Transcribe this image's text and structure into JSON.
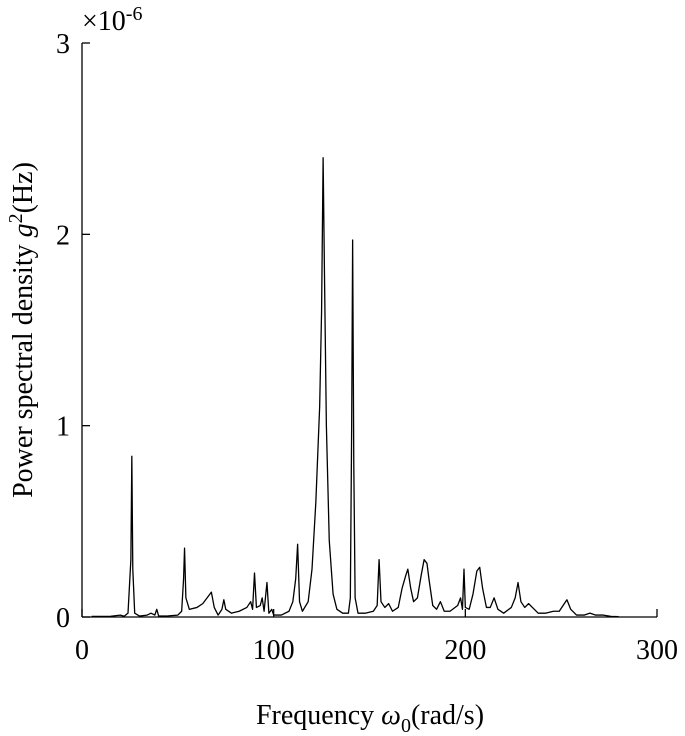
{
  "chart_data": {
    "type": "line",
    "y_scale_label": {
      "base": "×10",
      "exponent": "-6"
    },
    "ylabel": {
      "text": "Power spectral density ",
      "symbol": "g",
      "sup": "2",
      "unit": "(Hz)"
    },
    "xlabel": {
      "text": "Frequency ",
      "symbol": "ω",
      "sub": "0",
      "unit": "(rad/s)"
    },
    "xlim": [
      0,
      300
    ],
    "xticks": [
      0,
      100,
      200,
      300
    ],
    "ylim": [
      0,
      3
    ],
    "yticks": [
      0,
      1,
      2,
      3
    ],
    "grid": false,
    "series": [
      {
        "color": "#000000",
        "x": [
          5,
          15,
          20,
          22,
          24,
          25.5,
          26,
          26.5,
          27.5,
          30,
          34,
          36,
          38,
          39,
          40,
          45,
          50,
          52,
          53,
          53.5,
          54.2,
          56,
          60,
          63,
          66,
          67.5,
          69,
          71,
          73,
          74,
          75,
          78,
          82,
          86,
          88,
          89,
          90,
          91,
          93,
          94,
          95,
          96.5,
          97.5,
          99,
          100,
          104,
          108,
          110,
          111.5,
          112.5,
          113.5,
          115,
          118,
          120,
          122,
          124,
          125,
          125.8,
          126.5,
          127.5,
          129,
          131,
          133,
          136,
          139,
          140,
          140.7,
          141.2,
          141.8,
          142.5,
          144,
          148,
          152,
          154,
          155,
          156,
          158,
          160,
          162,
          165,
          167,
          169,
          170,
          171.5,
          173,
          175,
          177,
          178.5,
          180,
          181,
          183,
          185,
          187,
          189,
          192,
          196,
          197.5,
          198.5,
          199.3,
          200,
          202,
          204,
          206,
          207.5,
          209,
          211,
          213,
          215,
          217,
          220,
          224,
          226,
          227.5,
          229,
          231,
          233,
          235,
          238,
          242,
          246,
          249,
          251,
          253,
          255,
          258,
          262,
          265,
          268,
          272,
          276,
          280
        ],
        "values": [
          0.003,
          0.004,
          0.01,
          0.004,
          0.02,
          0.3,
          0.84,
          0.25,
          0.02,
          0.005,
          0.01,
          0.02,
          0.01,
          0.04,
          0.005,
          0.006,
          0.01,
          0.03,
          0.2,
          0.36,
          0.1,
          0.04,
          0.05,
          0.07,
          0.11,
          0.13,
          0.05,
          0.01,
          0.04,
          0.09,
          0.04,
          0.02,
          0.03,
          0.05,
          0.08,
          0.04,
          0.23,
          0.05,
          0.06,
          0.1,
          0.03,
          0.18,
          0.02,
          0.04,
          0.01,
          0.01,
          0.03,
          0.08,
          0.2,
          0.38,
          0.08,
          0.03,
          0.08,
          0.25,
          0.6,
          1.1,
          1.6,
          2.4,
          1.8,
          1.0,
          0.4,
          0.12,
          0.04,
          0.02,
          0.02,
          0.1,
          1.0,
          1.97,
          0.8,
          0.1,
          0.02,
          0.02,
          0.03,
          0.06,
          0.3,
          0.08,
          0.05,
          0.07,
          0.03,
          0.05,
          0.15,
          0.22,
          0.25,
          0.15,
          0.08,
          0.1,
          0.22,
          0.3,
          0.28,
          0.2,
          0.06,
          0.04,
          0.08,
          0.03,
          0.03,
          0.06,
          0.1,
          0.04,
          0.25,
          0.05,
          0.04,
          0.12,
          0.24,
          0.26,
          0.15,
          0.05,
          0.05,
          0.1,
          0.04,
          0.02,
          0.05,
          0.1,
          0.18,
          0.08,
          0.05,
          0.07,
          0.05,
          0.02,
          0.02,
          0.03,
          0.03,
          0.06,
          0.09,
          0.04,
          0.01,
          0.01,
          0.02,
          0.01,
          0.01,
          0.003,
          0.002
        ]
      }
    ]
  }
}
